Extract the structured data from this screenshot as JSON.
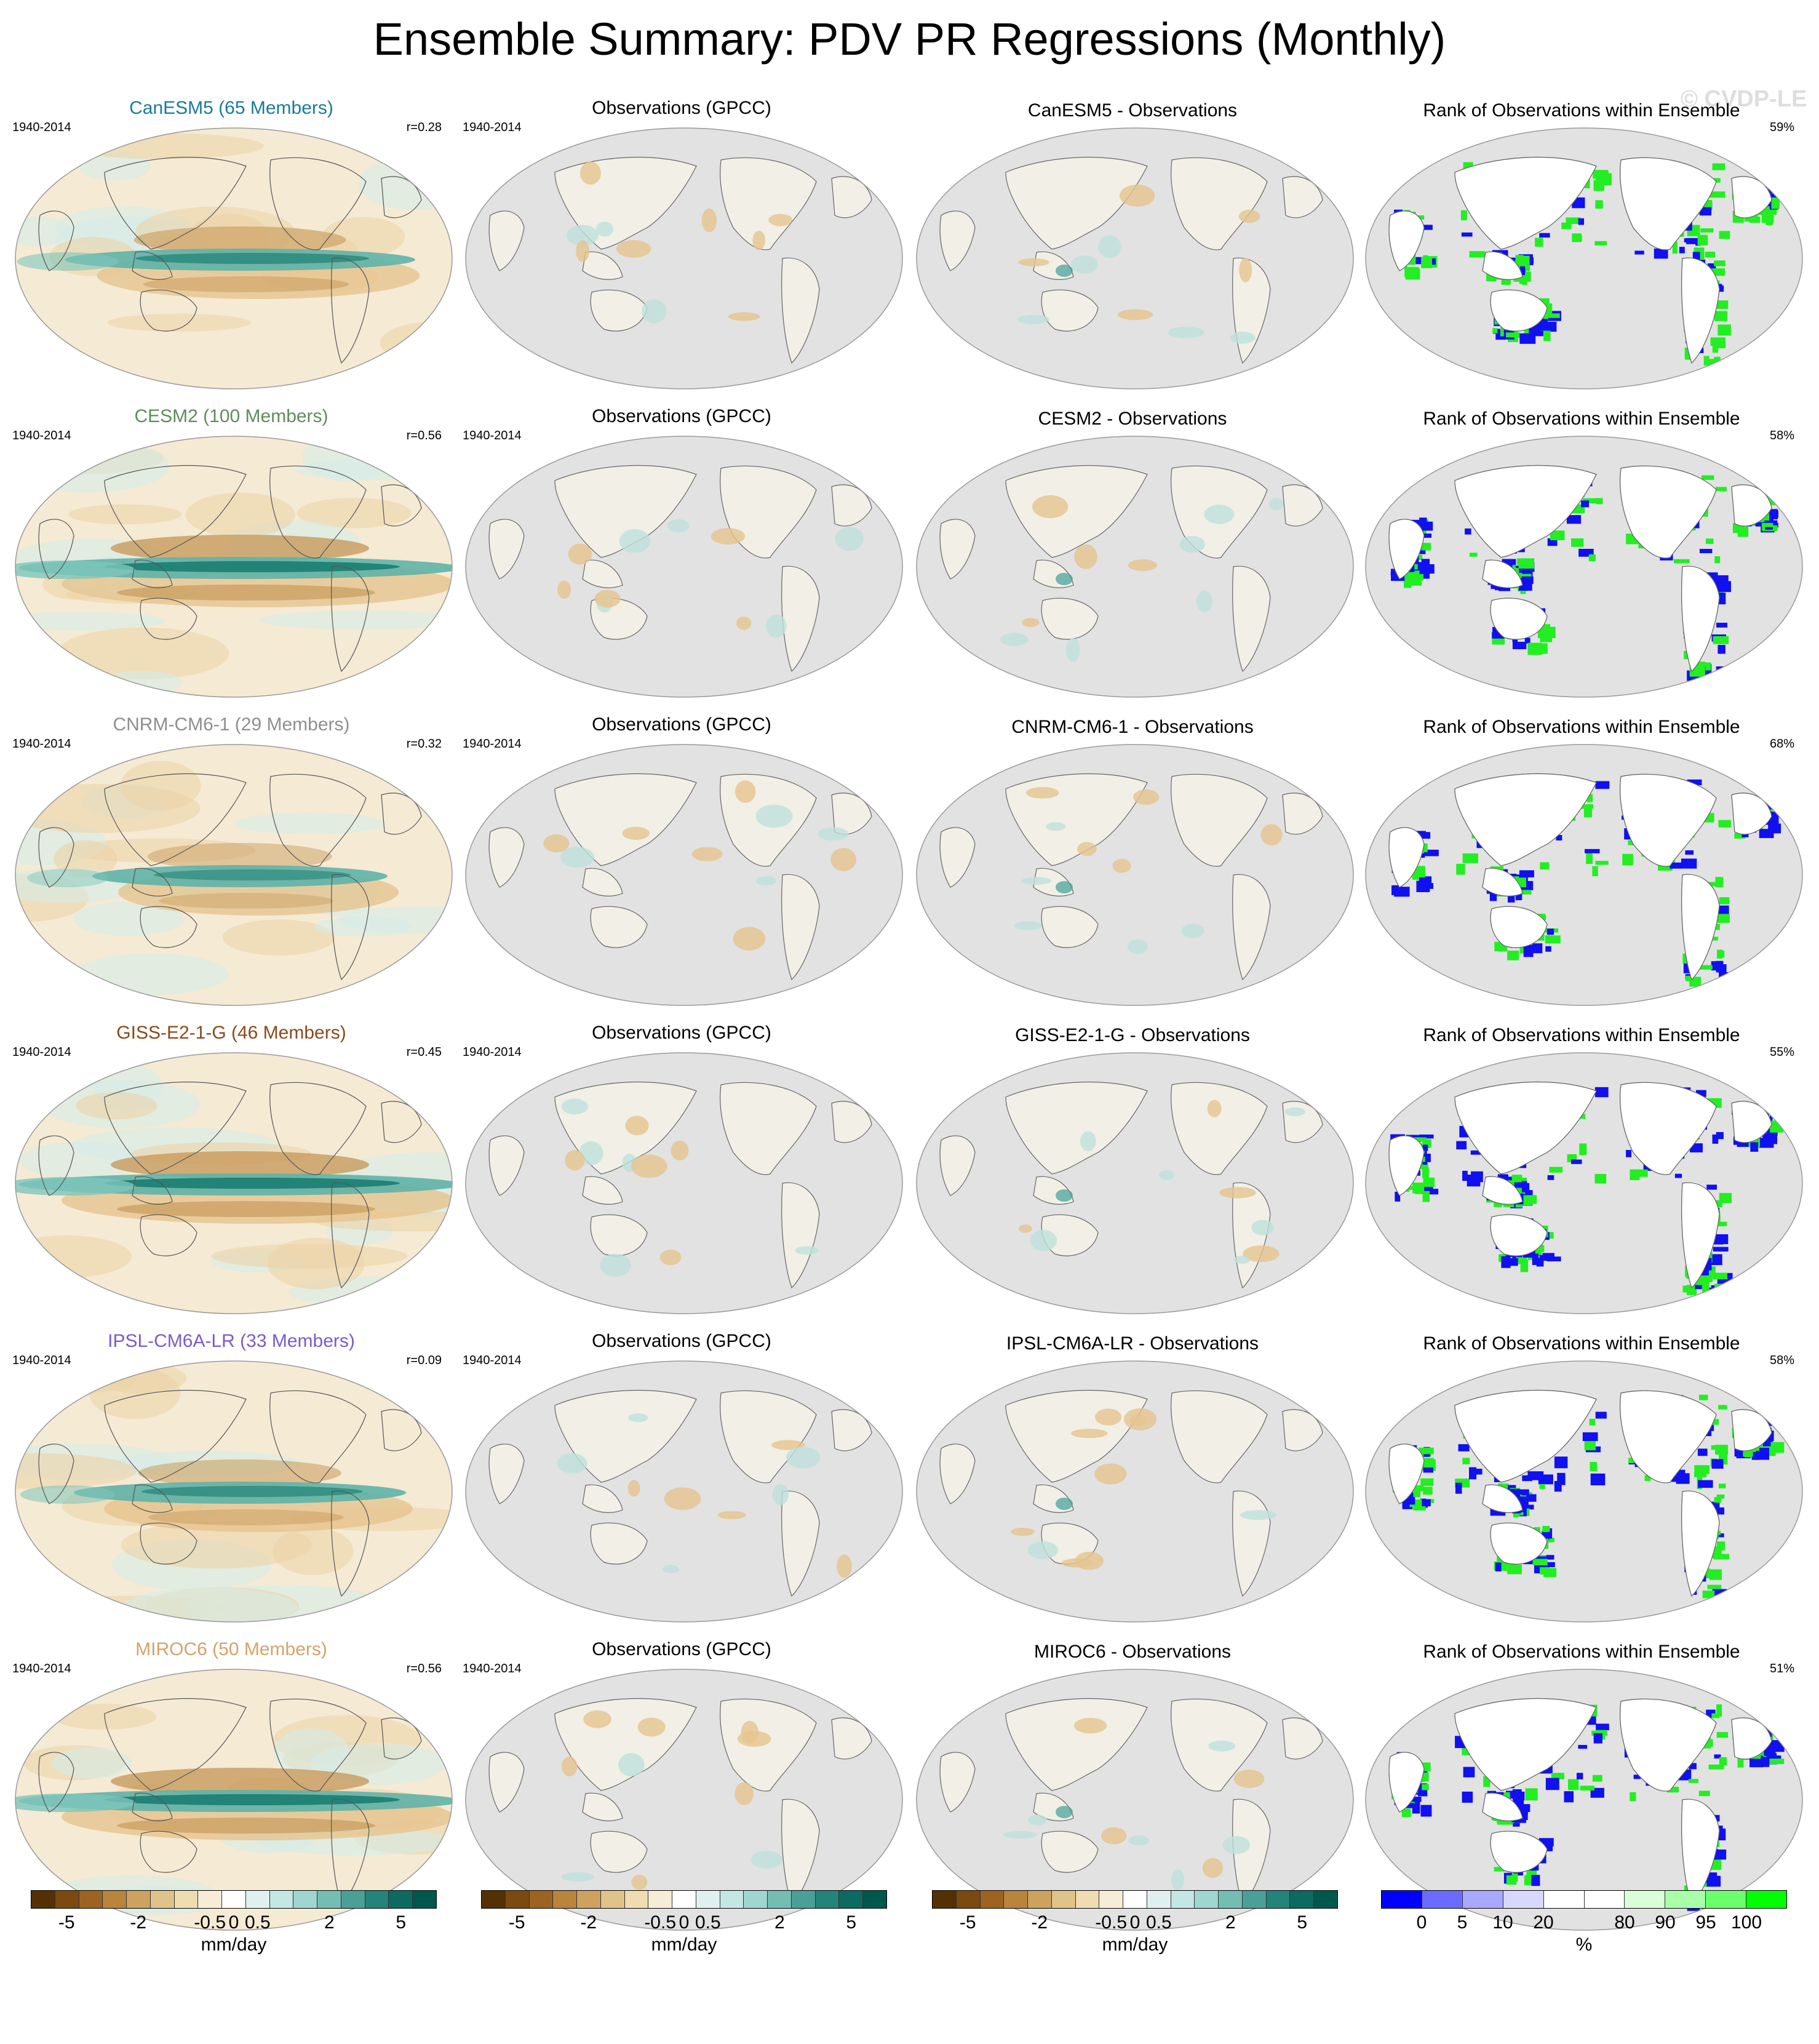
{
  "title": "Ensemble Summary: PDV PR Regressions (Monthly)",
  "watermark": "© CVDP-LE",
  "period": "1940-2014",
  "obs_title": "Observations (GPCC)",
  "rank_title": "Rank of Observations within Ensemble",
  "rows": [
    {
      "model_title": "CanESM5 (65 Members)",
      "model_color": "#1b7a9a",
      "corr": "r=0.28",
      "diff_title": "CanESM5 - Observations",
      "rank_pct": "59%",
      "strength": 0.75,
      "green_frac": 0.45,
      "blue_frac": 0.2
    },
    {
      "model_title": "CESM2 (100 Members)",
      "model_color": "#5e8e5a",
      "corr": "r=0.56",
      "diff_title": "CESM2 - Observations",
      "rank_pct": "58%",
      "strength": 1.0,
      "green_frac": 0.25,
      "blue_frac": 0.35
    },
    {
      "model_title": "CNRM-CM6-1 (29 Members)",
      "model_color": "#8f8f8f",
      "corr": "r=0.32",
      "diff_title": "CNRM-CM6-1 - Observations",
      "rank_pct": "68%",
      "strength": 0.6,
      "green_frac": 0.3,
      "blue_frac": 0.25
    },
    {
      "model_title": "GISS-E2-1-G (46 Members)",
      "model_color": "#8a4a1a",
      "corr": "r=0.45",
      "diff_title": "GISS-E2-1-G - Observations",
      "rank_pct": "55%",
      "strength": 1.0,
      "green_frac": 0.3,
      "blue_frac": 0.4
    },
    {
      "model_title": "IPSL-CM6A-LR (33 Members)",
      "model_color": "#7a5cc8",
      "corr": "r=0.09",
      "diff_title": "IPSL-CM6A-LR - Observations",
      "rank_pct": "58%",
      "strength": 0.7,
      "green_frac": 0.35,
      "blue_frac": 0.3
    },
    {
      "model_title": "MIROC6 (50 Members)",
      "model_color": "#d4a36a",
      "corr": "r=0.56",
      "diff_title": "MIROC6 - Observations",
      "rank_pct": "51%",
      "strength": 1.0,
      "green_frac": 0.3,
      "blue_frac": 0.35
    }
  ],
  "colorbars": {
    "units_mm": "mm/day",
    "units_pct": "%",
    "mm_colors": [
      "#543005",
      "#7b4a10",
      "#9c6420",
      "#b9843b",
      "#cda25f",
      "#e0c388",
      "#efdcb0",
      "#f7ecd6",
      "#ffffff",
      "#dff0ef",
      "#c3e7e3",
      "#9fd6cf",
      "#74bdb3",
      "#4aa097",
      "#23847a",
      "#0b6b61",
      "#00574c"
    ],
    "mm_ticks": [
      "-5",
      "-2",
      "-0.5",
      "0",
      "0.5",
      "2",
      "5"
    ],
    "pct_colors": [
      "#0000ff",
      "#6b6bff",
      "#a8a8ff",
      "#d8d8ff",
      "#ffffff",
      "#ffffff",
      "#d8ffd8",
      "#a8ffa8",
      "#6bff6b",
      "#00ff00"
    ],
    "pct_ticks": [
      "0",
      "5",
      "10",
      "20",
      "80",
      "90",
      "95",
      "100"
    ]
  }
}
